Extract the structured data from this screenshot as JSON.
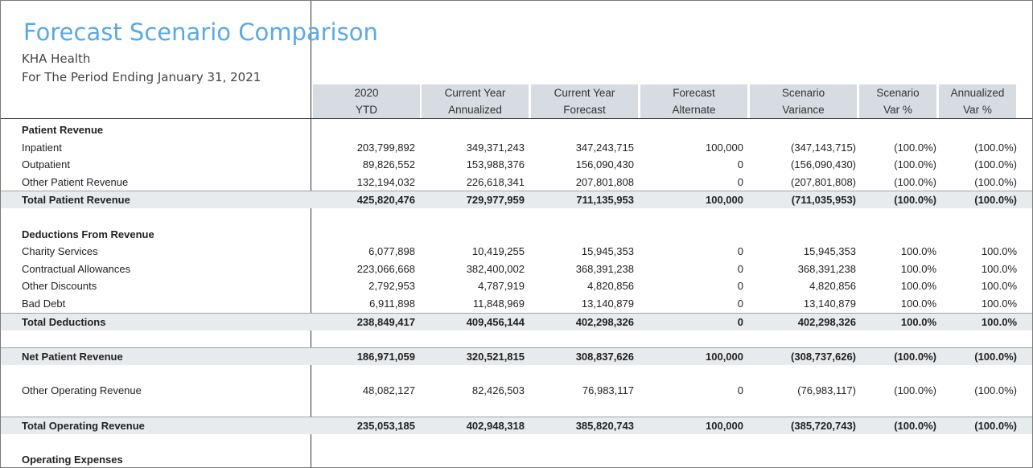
{
  "report": {
    "title": "Forecast Scenario Comparison",
    "company": "KHA Health",
    "period": "For The Period Ending January 31, 2021"
  },
  "columns": [
    {
      "line1": "2020",
      "line2": "YTD"
    },
    {
      "line1": "Current Year",
      "line2": "Annualized"
    },
    {
      "line1": "Current Year",
      "line2": "Forecast"
    },
    {
      "line1": "Forecast",
      "line2": "Alternate"
    },
    {
      "line1": "Scenario",
      "line2": "Variance"
    },
    {
      "line1": "Scenario",
      "line2": "Var %"
    },
    {
      "line1": "Annualized",
      "line2": "Var %"
    }
  ],
  "rows": [
    {
      "type": "section",
      "label": "Patient Revenue",
      "values": []
    },
    {
      "type": "line",
      "label": "Inpatient",
      "values": [
        "203,799,892",
        "349,371,243",
        "347,243,715",
        "100,000",
        "(347,143,715)",
        "(100.0%)",
        "(100.0%)"
      ]
    },
    {
      "type": "line",
      "label": "Outpatient",
      "values": [
        "89,826,552",
        "153,988,376",
        "156,090,430",
        "0",
        "(156,090,430)",
        "(100.0%)",
        "(100.0%)"
      ]
    },
    {
      "type": "line",
      "label": "Other Patient Revenue",
      "values": [
        "132,194,032",
        "226,618,341",
        "207,801,808",
        "0",
        "(207,801,808)",
        "(100.0%)",
        "(100.0%)"
      ]
    },
    {
      "type": "total",
      "label": "Total Patient Revenue",
      "values": [
        "425,820,476",
        "729,977,959",
        "711,135,953",
        "100,000",
        "(711,035,953)",
        "(100.0%)",
        "(100.0%)"
      ]
    },
    {
      "type": "blank",
      "label": "",
      "values": []
    },
    {
      "type": "section",
      "label": "Deductions From Revenue",
      "values": []
    },
    {
      "type": "line",
      "label": "Charity Services",
      "values": [
        "6,077,898",
        "10,419,255",
        "15,945,353",
        "0",
        "15,945,353",
        "100.0%",
        "100.0%"
      ]
    },
    {
      "type": "line",
      "label": "Contractual Allowances",
      "values": [
        "223,066,668",
        "382,400,002",
        "368,391,238",
        "0",
        "368,391,238",
        "100.0%",
        "100.0%"
      ]
    },
    {
      "type": "line",
      "label": "Other Discounts",
      "values": [
        "2,792,953",
        "4,787,919",
        "4,820,856",
        "0",
        "4,820,856",
        "100.0%",
        "100.0%"
      ]
    },
    {
      "type": "line",
      "label": "Bad Debt",
      "values": [
        "6,911,898",
        "11,848,969",
        "13,140,879",
        "0",
        "13,140,879",
        "100.0%",
        "100.0%"
      ]
    },
    {
      "type": "total",
      "label": "Total Deductions",
      "values": [
        "238,849,417",
        "409,456,144",
        "402,298,326",
        "0",
        "402,298,326",
        "100.0%",
        "100.0%"
      ]
    },
    {
      "type": "blank",
      "label": "",
      "values": []
    },
    {
      "type": "total",
      "label": "Net Patient Revenue",
      "values": [
        "186,971,059",
        "320,521,815",
        "308,837,626",
        "100,000",
        "(308,737,626)",
        "(100.0%)",
        "(100.0%)"
      ]
    },
    {
      "type": "blank",
      "label": "",
      "values": []
    },
    {
      "type": "line",
      "label": "Other Operating Revenue",
      "values": [
        "48,082,127",
        "82,426,503",
        "76,983,117",
        "0",
        "(76,983,117)",
        "(100.0%)",
        "(100.0%)"
      ]
    },
    {
      "type": "blank",
      "label": "",
      "values": []
    },
    {
      "type": "total",
      "label": "Total Operating Revenue",
      "values": [
        "235,053,185",
        "402,948,318",
        "385,820,743",
        "100,000",
        "(385,720,743)",
        "(100.0%)",
        "(100.0%)"
      ]
    },
    {
      "type": "blank",
      "label": "",
      "values": []
    },
    {
      "type": "section",
      "label": "Operating Expenses",
      "values": []
    }
  ]
}
